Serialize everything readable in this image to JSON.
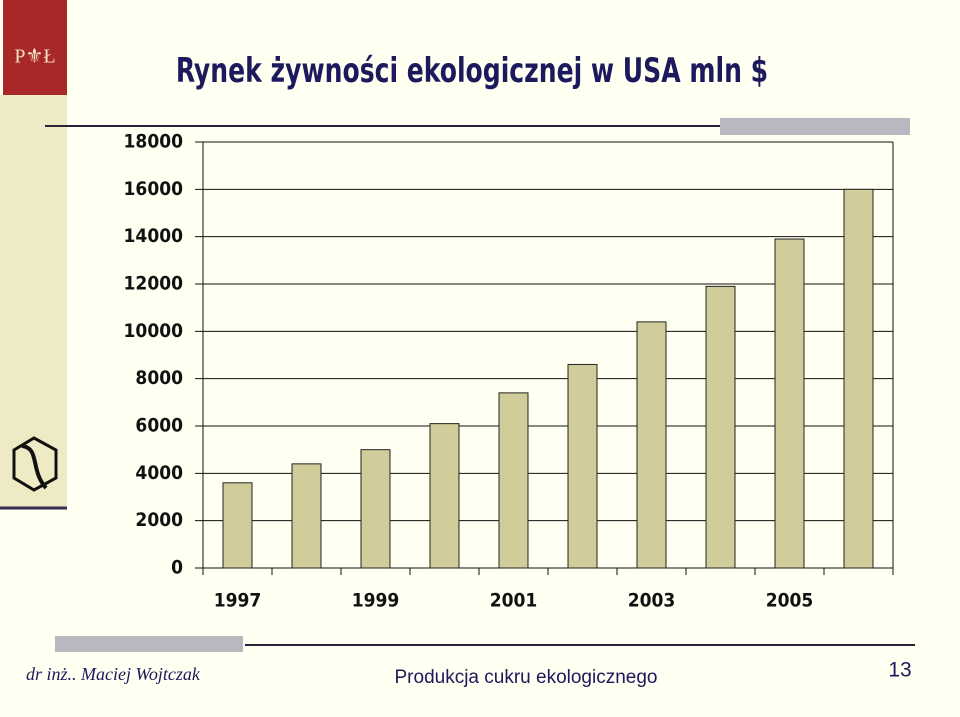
{
  "chart_data": {
    "type": "bar",
    "title": "Rynek żywności ekologicznej w USA mln $",
    "categories": [
      "1997",
      null,
      "1999",
      null,
      "2001",
      null,
      "2003",
      null,
      "2005",
      null
    ],
    "values": [
      3600,
      4400,
      5000,
      6100,
      7400,
      8600,
      10400,
      11900,
      13900,
      16000
    ],
    "color": "#d1cd9a",
    "ylim": [
      0,
      18000
    ],
    "yticks": [
      0,
      2000,
      4000,
      6000,
      8000,
      10000,
      12000,
      14000,
      16000,
      18000
    ],
    "grid": true
  },
  "footer": {
    "author": "dr inż.. Maciej Wojtczak",
    "subject": "Produkcja cukru ekologicznego",
    "page": 13
  }
}
